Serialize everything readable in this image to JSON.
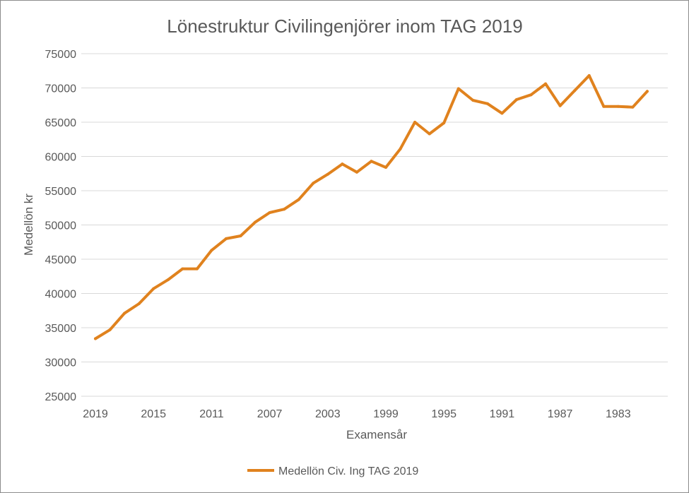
{
  "chart_data": {
    "type": "line",
    "title": "Lönestruktur Civilingenjörer inom TAG 2019",
    "xlabel": "Examensår",
    "ylabel": "Medellön kr",
    "ylim": [
      25000,
      75000
    ],
    "yticks": [
      "25000",
      "30000",
      "35000",
      "40000",
      "45000",
      "50000",
      "55000",
      "60000",
      "65000",
      "70000",
      "75000"
    ],
    "xticks": [
      "2019",
      "2015",
      "2011",
      "2007",
      "2003",
      "1999",
      "1995",
      "1991",
      "1987",
      "1983"
    ],
    "x_reversed": true,
    "grid": true,
    "legend": "bottom",
    "color": "#E0821E",
    "x": [
      2019,
      2018,
      2017,
      2016,
      2015,
      2014,
      2013,
      2012,
      2011,
      2010,
      2009,
      2008,
      2007,
      2006,
      2005,
      2004,
      2003,
      2002,
      2001,
      2000,
      1999,
      1998,
      1997,
      1996,
      1995,
      1994,
      1993,
      1992,
      1991,
      1990,
      1989,
      1988,
      1987,
      1986,
      1985,
      1984,
      1983,
      1982,
      1981
    ],
    "series": [
      {
        "name": "Medellön Civ. Ing TAG 2019",
        "values": [
          33400,
          34700,
          37100,
          38500,
          40700,
          42000,
          43600,
          43600,
          46300,
          48000,
          48400,
          50400,
          51800,
          52300,
          53700,
          56100,
          57400,
          58900,
          57700,
          59300,
          58400,
          61100,
          65000,
          63300,
          64900,
          69900,
          68200,
          67700,
          66300,
          68300,
          69000,
          70600,
          67400,
          69600,
          71800,
          67300,
          67300,
          67200,
          69500
        ]
      }
    ]
  }
}
